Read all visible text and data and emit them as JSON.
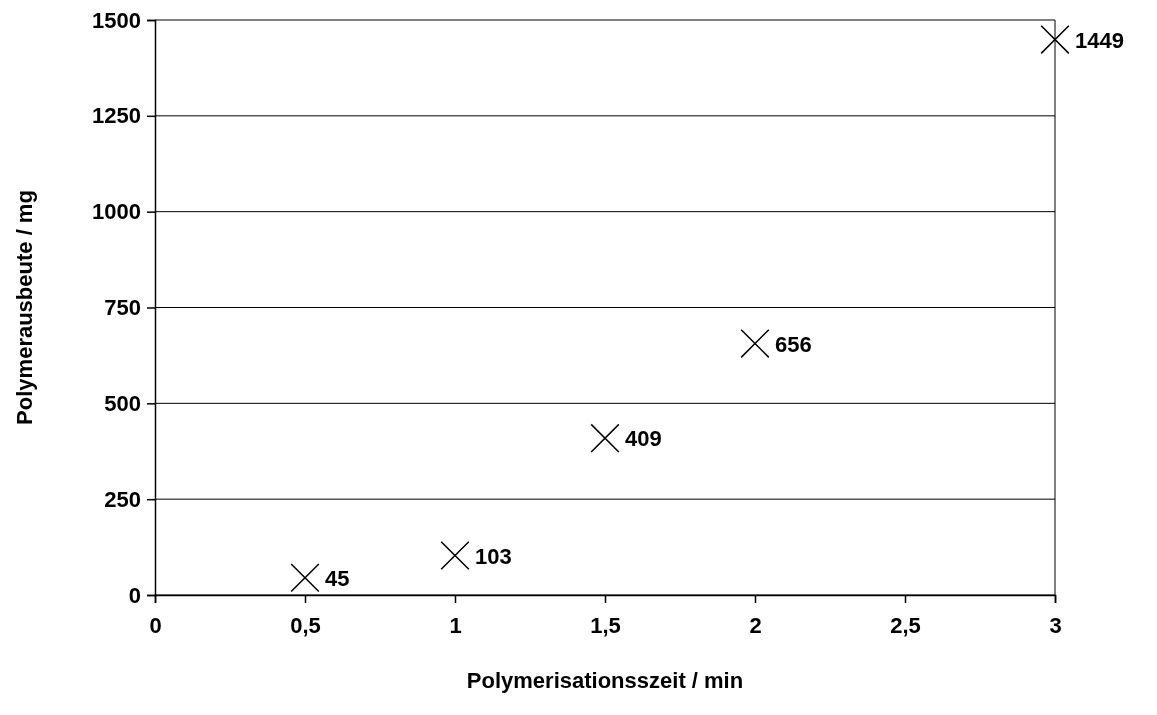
{
  "chart_data": {
    "type": "scatter",
    "xlabel": "Polymerisationsszeit / min",
    "ylabel": "Polymerausbeute / mg",
    "x": [
      0.5,
      1,
      1.5,
      2,
      3
    ],
    "values": [
      45,
      103,
      409,
      656,
      1449
    ],
    "color": "#000000",
    "xlim": [
      0,
      3
    ],
    "ylim": [
      0,
      1500
    ],
    "xticks": [
      0,
      {
        "value": 0.5,
        "label": "0,5"
      },
      1,
      {
        "value": 1.5,
        "label": "1,5"
      },
      2,
      {
        "value": 2.5,
        "label": "2,5"
      },
      3
    ],
    "yticks": [
      0,
      250,
      500,
      750,
      1000,
      1250,
      1500
    ],
    "grid": "y",
    "marker": "cross",
    "data_labels": true
  }
}
